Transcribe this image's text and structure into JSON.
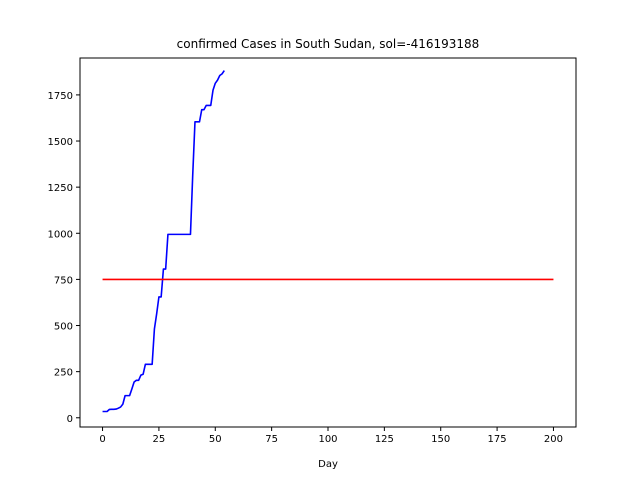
{
  "chart_data": {
    "type": "line",
    "title": "confirmed Cases in South Sudan, sol=-416193188",
    "xlabel": "Day",
    "ylabel": "",
    "xlim": [
      -10,
      210
    ],
    "ylim": [
      -50,
      1950
    ],
    "xticks": [
      0,
      25,
      50,
      75,
      100,
      125,
      150,
      175,
      200
    ],
    "yticks": [
      0,
      250,
      500,
      750,
      1000,
      1250,
      1500,
      1750
    ],
    "grid": false,
    "series": [
      {
        "color": "#0000ff",
        "x": [
          0,
          1,
          2,
          3,
          4,
          5,
          6,
          7,
          8,
          9,
          10,
          11,
          12,
          13,
          14,
          15,
          16,
          17,
          18,
          19,
          20,
          21,
          22,
          23,
          24,
          25,
          26,
          27,
          28,
          29,
          30,
          31,
          32,
          33,
          34,
          35,
          36,
          37,
          38,
          39,
          40,
          41,
          42,
          43,
          44,
          45,
          46,
          47,
          48,
          49,
          50,
          51,
          52,
          53,
          54
        ],
        "y": [
          34,
          34,
          34,
          45,
          46,
          46,
          47,
          52,
          58,
          74,
          120,
          120,
          120,
          156,
          194,
          203,
          203,
          231,
          236,
          290,
          290,
          290,
          290,
          481,
          563,
          655,
          655,
          806,
          806,
          994,
          994,
          994,
          994,
          994,
          994,
          994,
          994,
          994,
          994,
          994,
          1317,
          1604,
          1604,
          1604,
          1670,
          1670,
          1693,
          1693,
          1693,
          1776,
          1813,
          1830,
          1855,
          1864,
          1882
        ]
      },
      {
        "color": "#ff0000",
        "x": [
          0,
          200
        ],
        "y": [
          750,
          750
        ]
      }
    ]
  }
}
